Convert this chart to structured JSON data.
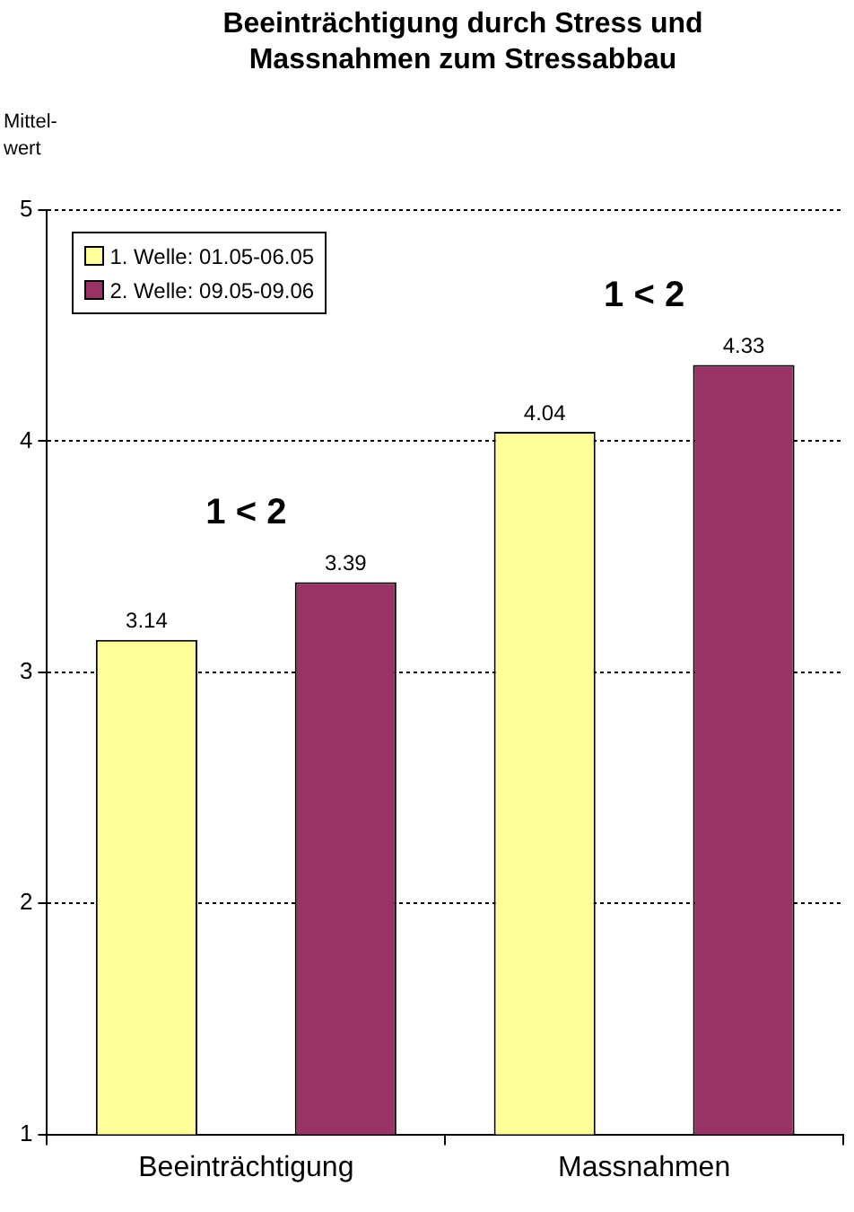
{
  "chart_data": {
    "type": "bar",
    "title": "Beeinträchtigung durch Stress und Massnahmen zum Stressabbau",
    "ylabel": "Mittel-\nwert",
    "categories": [
      "Beeinträchtigung",
      "Massnahmen"
    ],
    "series": [
      {
        "name": "1. Welle: 01.05-06.05",
        "color": "#ffff99",
        "values": [
          3.14,
          4.04
        ]
      },
      {
        "name": "2. Welle: 09.05-09.06",
        "color": "#993366",
        "values": [
          3.39,
          4.33
        ]
      }
    ],
    "ylim": [
      1,
      5
    ],
    "yticks": [
      1,
      2,
      3,
      4,
      5
    ],
    "grid": "y",
    "legend": "top left",
    "data_labels": true,
    "annotations": [
      "1 < 2",
      "1 < 2"
    ]
  }
}
